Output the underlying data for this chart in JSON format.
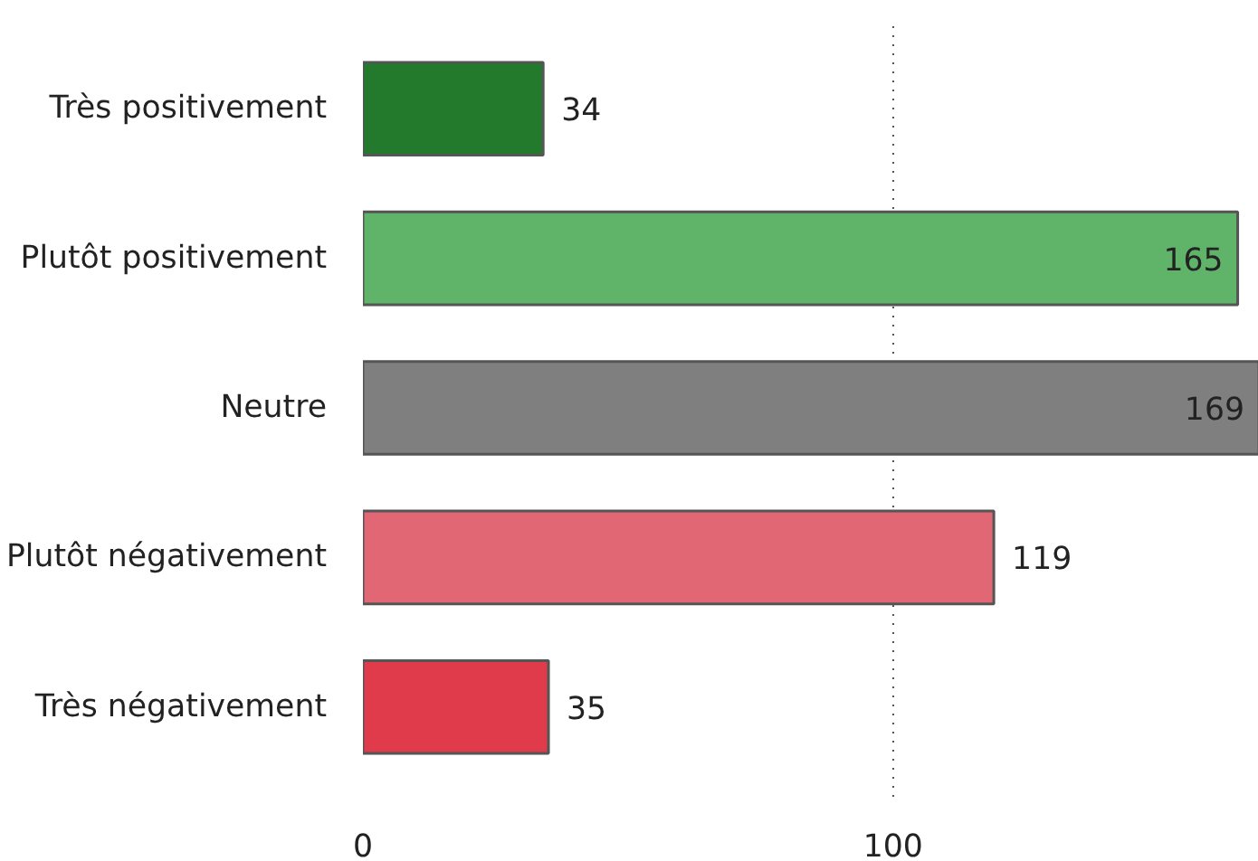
{
  "chart_data": {
    "type": "bar",
    "orientation": "horizontal",
    "categories": [
      "Très positivement",
      "Plutôt positivement",
      "Neutre",
      "Plutôt négativement",
      "Très négativement"
    ],
    "values": [
      34,
      165,
      169,
      119,
      35
    ],
    "colors": [
      "#237a2d",
      "#5fb46a",
      "#7f7f7f",
      "#e06773",
      "#e03b4b"
    ],
    "xlim": [
      0,
      169
    ],
    "xticks": [
      0,
      100
    ],
    "grid": "x",
    "data_labels": true
  }
}
